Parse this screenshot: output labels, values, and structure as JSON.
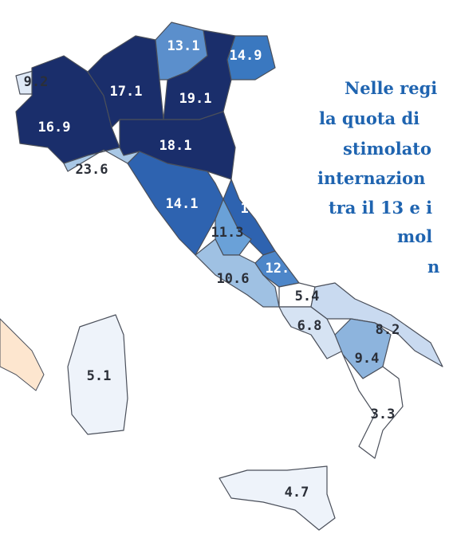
{
  "map": {
    "regions": [
      {
        "value": 9.2,
        "color": "#dfe9f6"
      },
      {
        "value": 16.9,
        "color": "#1a2e6b"
      },
      {
        "value": 17.1,
        "color": "#1a2e6b"
      },
      {
        "value": 13.1,
        "color": "#5b8fcc"
      },
      {
        "value": 19.1,
        "color": "#1a2e6b"
      },
      {
        "value": 14.9,
        "color": "#3a78c0"
      },
      {
        "value": 18.1,
        "color": "#1a2e6b"
      },
      {
        "value": 23.6,
        "color": "#a9c8e6"
      },
      {
        "value": 14.1,
        "color": "#2e63b0"
      },
      {
        "value": 14.1,
        "color": "#2e63b0"
      },
      {
        "value": 11.3,
        "color": "#6aa1d8"
      },
      {
        "value": 10.6,
        "color": "#9fc1e3"
      },
      {
        "value": 12.8,
        "color": "#4d86c9"
      },
      {
        "value": 5.4,
        "color": "#ffffff"
      },
      {
        "value": 6.8,
        "color": "#d6e3f3"
      },
      {
        "value": 8.2,
        "color": "#c9daf0"
      },
      {
        "value": 9.4,
        "color": "#8db4dd"
      },
      {
        "value": 3.3,
        "color": "#ffffff"
      },
      {
        "value": 4.7,
        "color": "#eef3fa"
      },
      {
        "value": 5.1,
        "color": "#eef3fa"
      }
    ],
    "annotation": [
      "Nelle regi",
      "la quota di",
      "stimolato",
      "internazion",
      "tra il 13 e i",
      "mol",
      "n"
    ]
  }
}
